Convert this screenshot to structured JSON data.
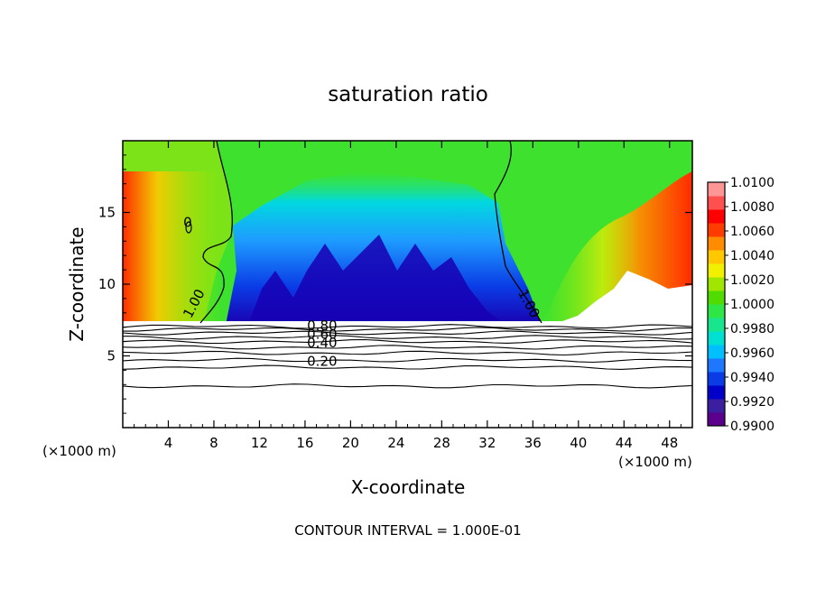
{
  "chart_data": {
    "type": "heatmap",
    "title": "saturation ratio",
    "xlabel": "X-coordinate",
    "ylabel": "Z-coordinate",
    "x_unit_left": "(×1000 m)",
    "x_unit_right": "(×1000 m)",
    "footer": "CONTOUR INTERVAL = 1.000E-01",
    "xlim": [
      0,
      50
    ],
    "ylim": [
      0,
      20
    ],
    "x_ticks": [
      4,
      8,
      12,
      16,
      20,
      24,
      28,
      32,
      36,
      40,
      44,
      48
    ],
    "x_tick_labels": [
      "4",
      "8",
      "12",
      "16",
      "20",
      "24",
      "28",
      "32",
      "36",
      "40",
      "44",
      "48"
    ],
    "y_ticks": [
      5,
      10,
      15
    ],
    "y_tick_labels": [
      "5",
      "10",
      "15"
    ],
    "colorbar": {
      "min": 0.99,
      "max": 1.01,
      "tick_labels": [
        "0.9900",
        "0.9920",
        "0.9940",
        "0.9960",
        "0.9980",
        "1.0000",
        "1.0020",
        "1.0040",
        "1.0060",
        "1.0080",
        "1.0100"
      ],
      "colors": [
        "#5a008c",
        "#3c1ea0",
        "#0000c8",
        "#0a3ce6",
        "#1e78ff",
        "#00bfff",
        "#00e0d2",
        "#19e68c",
        "#2ee646",
        "#50dc00",
        "#a0e600",
        "#f0f000",
        "#ffc800",
        "#ff8c00",
        "#ff3c00",
        "#ff0000",
        "#ff5050",
        "#ff9696"
      ]
    },
    "contour_labels": [
      {
        "text": "1.00",
        "x": 6.6,
        "z": 8.5
      },
      {
        "text": "1.00",
        "x": 35.3,
        "z": 8.5
      },
      {
        "text": "0",
        "x": 5.7,
        "z": 14.0
      },
      {
        "text": "0.80",
        "x": 17.5,
        "z": 6.8
      },
      {
        "text": "0.60",
        "x": 17.5,
        "z": 6.2
      },
      {
        "text": "0.40",
        "x": 17.5,
        "z": 5.6
      },
      {
        "text": "0.20",
        "x": 17.5,
        "z": 4.3
      }
    ],
    "contour_lines_z": [
      2.9,
      4.2,
      4.7,
      5.2,
      5.6,
      6.0,
      6.3,
      6.6,
      6.85,
      7.05
    ]
  }
}
